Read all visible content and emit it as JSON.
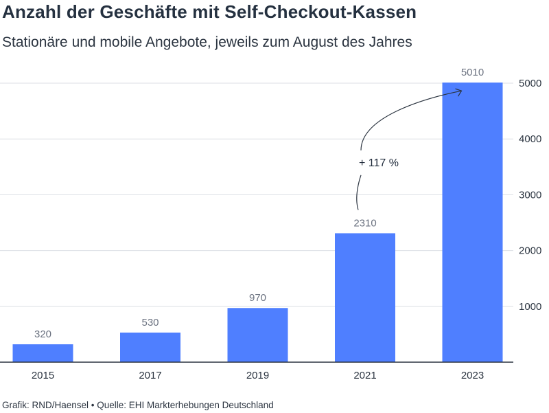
{
  "header": {
    "title": "Anzahl der Geschäfte mit Self-Checkout-Kassen",
    "subtitle": "Stationäre und mobile Angebote, jeweils zum August des Jahres"
  },
  "footer": {
    "credit": "Grafik: RND/Haensel • Quelle: EHI Markterhebungen Deutschland"
  },
  "chart_data": {
    "type": "bar",
    "categories": [
      "2015",
      "2017",
      "2019",
      "2021",
      "2023"
    ],
    "values": [
      320,
      530,
      970,
      2310,
      5010
    ],
    "data_labels": [
      "320",
      "530",
      "970",
      "2310",
      "5010"
    ],
    "yticks": [
      1000,
      2000,
      3000,
      4000,
      5000
    ],
    "ytick_labels": [
      "1000",
      "2000",
      "3000",
      "4000",
      "5000"
    ],
    "ylim": [
      0,
      5000
    ],
    "y_axis_side": "right",
    "grid": true,
    "bar_color": "#4f7fff",
    "grid_color": "#dcdfe4",
    "axis_color": "#2b3440",
    "annotation": {
      "text": "+ 117 %",
      "from_category": "2021",
      "to_category": "2023"
    }
  }
}
